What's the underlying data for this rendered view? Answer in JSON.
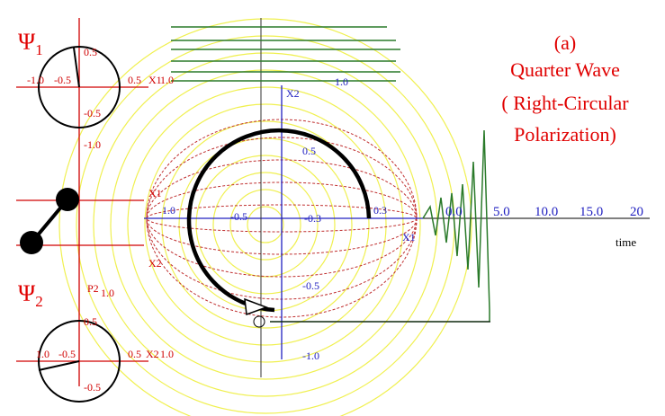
{
  "psi1": {
    "symbol": "Ψ",
    "sub": "1",
    "ticks": [
      "0.5",
      "-1.0",
      "-0.5",
      "0.5",
      "X1",
      "1.0",
      "-0.5",
      "-1.0"
    ]
  },
  "psi2": {
    "symbol": "Ψ",
    "sub": "2",
    "ticks": [
      "P2",
      "1.0",
      "0.5",
      "1.0",
      "-0.5",
      "0.5",
      "X2",
      "1.0",
      "-0.5"
    ]
  },
  "side_labels": [
    "X1",
    "X2"
  ],
  "caption": [
    "(a)",
    "Quarter Wave",
    "( Right-Circular",
    "Polarization)"
  ],
  "center_axis": [
    "X2",
    "1.0",
    "0.5",
    "1.0",
    "-0.5",
    "-0.3",
    "0.3",
    "X1",
    "-0.5",
    "-1.0"
  ],
  "time_axis": {
    "ticks": [
      "0.0",
      "5.0",
      "10.0",
      "15.0",
      "20"
    ],
    "label": "time"
  }
}
